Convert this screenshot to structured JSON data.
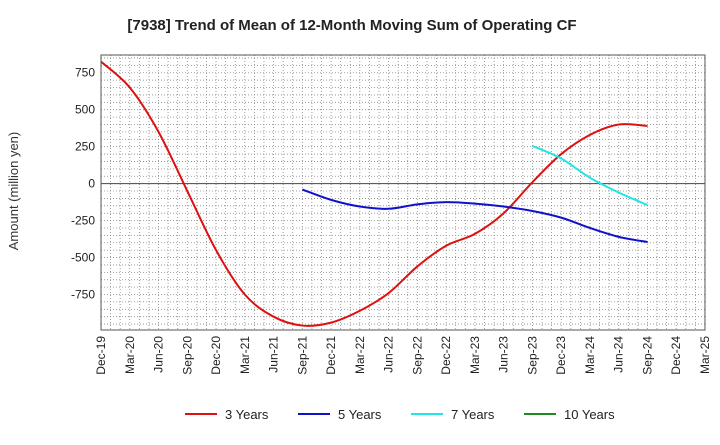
{
  "chart_data": {
    "type": "line",
    "title": "[7938]  Trend of Mean of 12-Month Moving Sum of Operating CF",
    "xlabel": "",
    "ylabel": "Amount (million yen)",
    "x_ticks": [
      "Dec-19",
      "Mar-20",
      "Jun-20",
      "Sep-20",
      "Dec-20",
      "Mar-21",
      "Jun-21",
      "Sep-21",
      "Dec-21",
      "Mar-22",
      "Jun-22",
      "Sep-22",
      "Dec-22",
      "Mar-23",
      "Jun-23",
      "Sep-23",
      "Dec-23",
      "Mar-24",
      "Jun-24",
      "Sep-24",
      "Dec-24",
      "Mar-25"
    ],
    "y_ticks": [
      750,
      500,
      250,
      0,
      -250,
      -500,
      -750
    ],
    "y_tick_labels": [
      "750",
      "500",
      "250",
      "0",
      "-250",
      "-500",
      "-750"
    ],
    "ylim": [
      -990,
      870
    ],
    "grid": true,
    "legend_position": "bottom",
    "series": [
      {
        "name": "3 Years",
        "color": "#dd1111",
        "values": [
          [
            0,
            825
          ],
          [
            1,
            650
          ],
          [
            2,
            350
          ],
          [
            3,
            -50
          ],
          [
            4,
            -450
          ],
          [
            5,
            -750
          ],
          [
            6,
            -900
          ],
          [
            7,
            -960
          ],
          [
            8,
            -940
          ],
          [
            9,
            -860
          ],
          [
            10,
            -740
          ],
          [
            11,
            -560
          ],
          [
            12,
            -420
          ],
          [
            13,
            -340
          ],
          [
            14,
            -200
          ],
          [
            15,
            10
          ],
          [
            16,
            200
          ],
          [
            17,
            330
          ],
          [
            18,
            400
          ],
          [
            19,
            390
          ]
        ]
      },
      {
        "name": "5 Years",
        "color": "#1111cc",
        "values": [
          [
            7,
            -40
          ],
          [
            8,
            -110
          ],
          [
            9,
            -155
          ],
          [
            10,
            -170
          ],
          [
            11,
            -140
          ],
          [
            12,
            -125
          ],
          [
            13,
            -135
          ],
          [
            14,
            -155
          ],
          [
            15,
            -185
          ],
          [
            16,
            -230
          ],
          [
            17,
            -300
          ],
          [
            18,
            -360
          ],
          [
            19,
            -395
          ]
        ]
      },
      {
        "name": "7 Years",
        "color": "#22e5e5",
        "values": [
          [
            15,
            255
          ],
          [
            16,
            170
          ],
          [
            17,
            40
          ],
          [
            18,
            -60
          ],
          [
            19,
            -145
          ]
        ]
      },
      {
        "name": "10 Years",
        "color": "#228822",
        "values": []
      }
    ]
  }
}
